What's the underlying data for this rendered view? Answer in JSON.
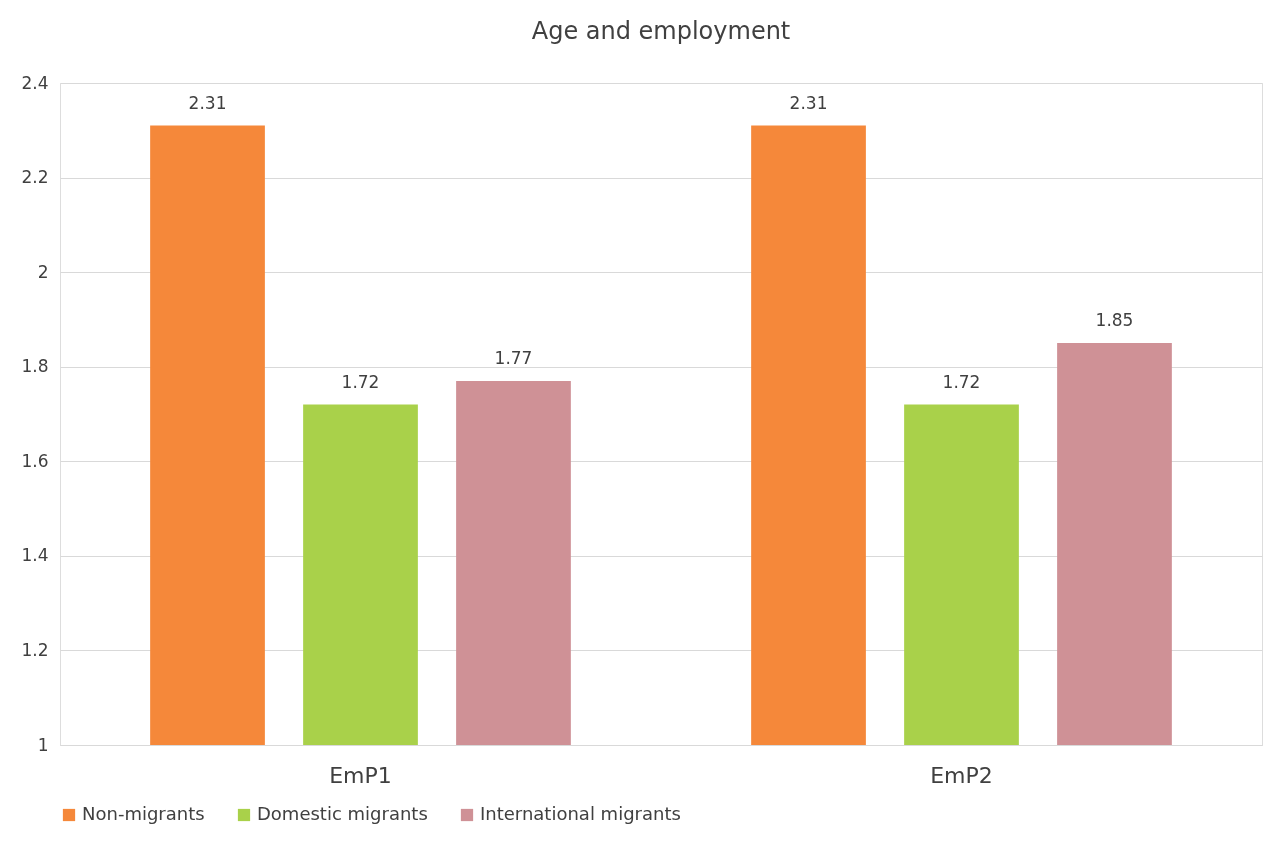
{
  "chart_data": {
    "type": "bar",
    "title": "Age and employment",
    "categories": [
      "EmP1",
      "EmP2"
    ],
    "series": [
      {
        "name": "Non-migrants",
        "color": "#f5883a",
        "values": [
          2.31,
          2.31
        ]
      },
      {
        "name": "Domestic migrants",
        "color": "#a9d14a",
        "values": [
          1.72,
          1.72
        ]
      },
      {
        "name": "International migrants",
        "color": "#cf9196",
        "values": [
          1.77,
          1.85
        ]
      }
    ],
    "ylim": [
      1,
      2.4
    ],
    "yticks": [
      1,
      1.2,
      1.4,
      1.6,
      1.8,
      2,
      2.2,
      2.4
    ],
    "grid": "y",
    "legend": "bottom",
    "data_labels": true
  }
}
